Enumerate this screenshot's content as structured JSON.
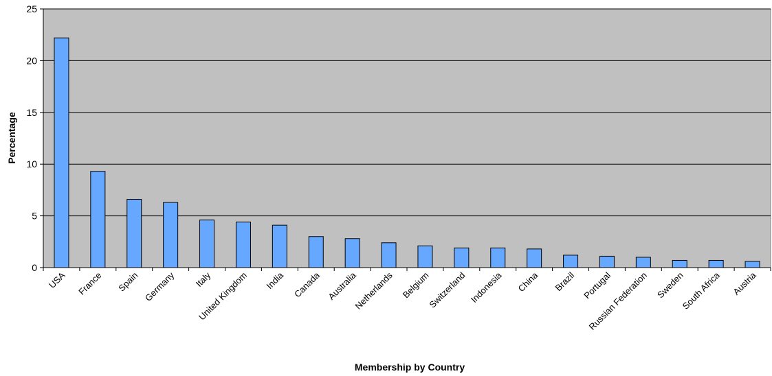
{
  "chart_data": {
    "type": "bar",
    "title": "",
    "xlabel": "Membership by Country",
    "ylabel": "Percentage",
    "ylim": [
      0,
      25
    ],
    "yticks": [
      "0",
      "5",
      "10",
      "15",
      "20",
      "25"
    ],
    "grid": true,
    "categories": [
      "USA",
      "France",
      "Spain",
      "Germany",
      "Italy",
      "United Kingdom",
      "India",
      "Canada",
      "Australia",
      "Netherlands",
      "Belgium",
      "Switzerland",
      "Indonesia",
      "China",
      "Brazil",
      "Portugal",
      "Russian Federation",
      "Sweden",
      "South Africa",
      "Austria"
    ],
    "values": [
      22.2,
      9.3,
      6.6,
      6.3,
      4.6,
      4.4,
      4.1,
      3.0,
      2.8,
      2.4,
      2.1,
      1.9,
      1.9,
      1.8,
      1.2,
      1.1,
      1.0,
      0.7,
      0.7,
      0.6
    ],
    "colors": {
      "plot_bg": "#c0c0c0",
      "bar_fill": "#66a8ff",
      "bar_stroke": "#000000",
      "grid": "#000000"
    }
  }
}
